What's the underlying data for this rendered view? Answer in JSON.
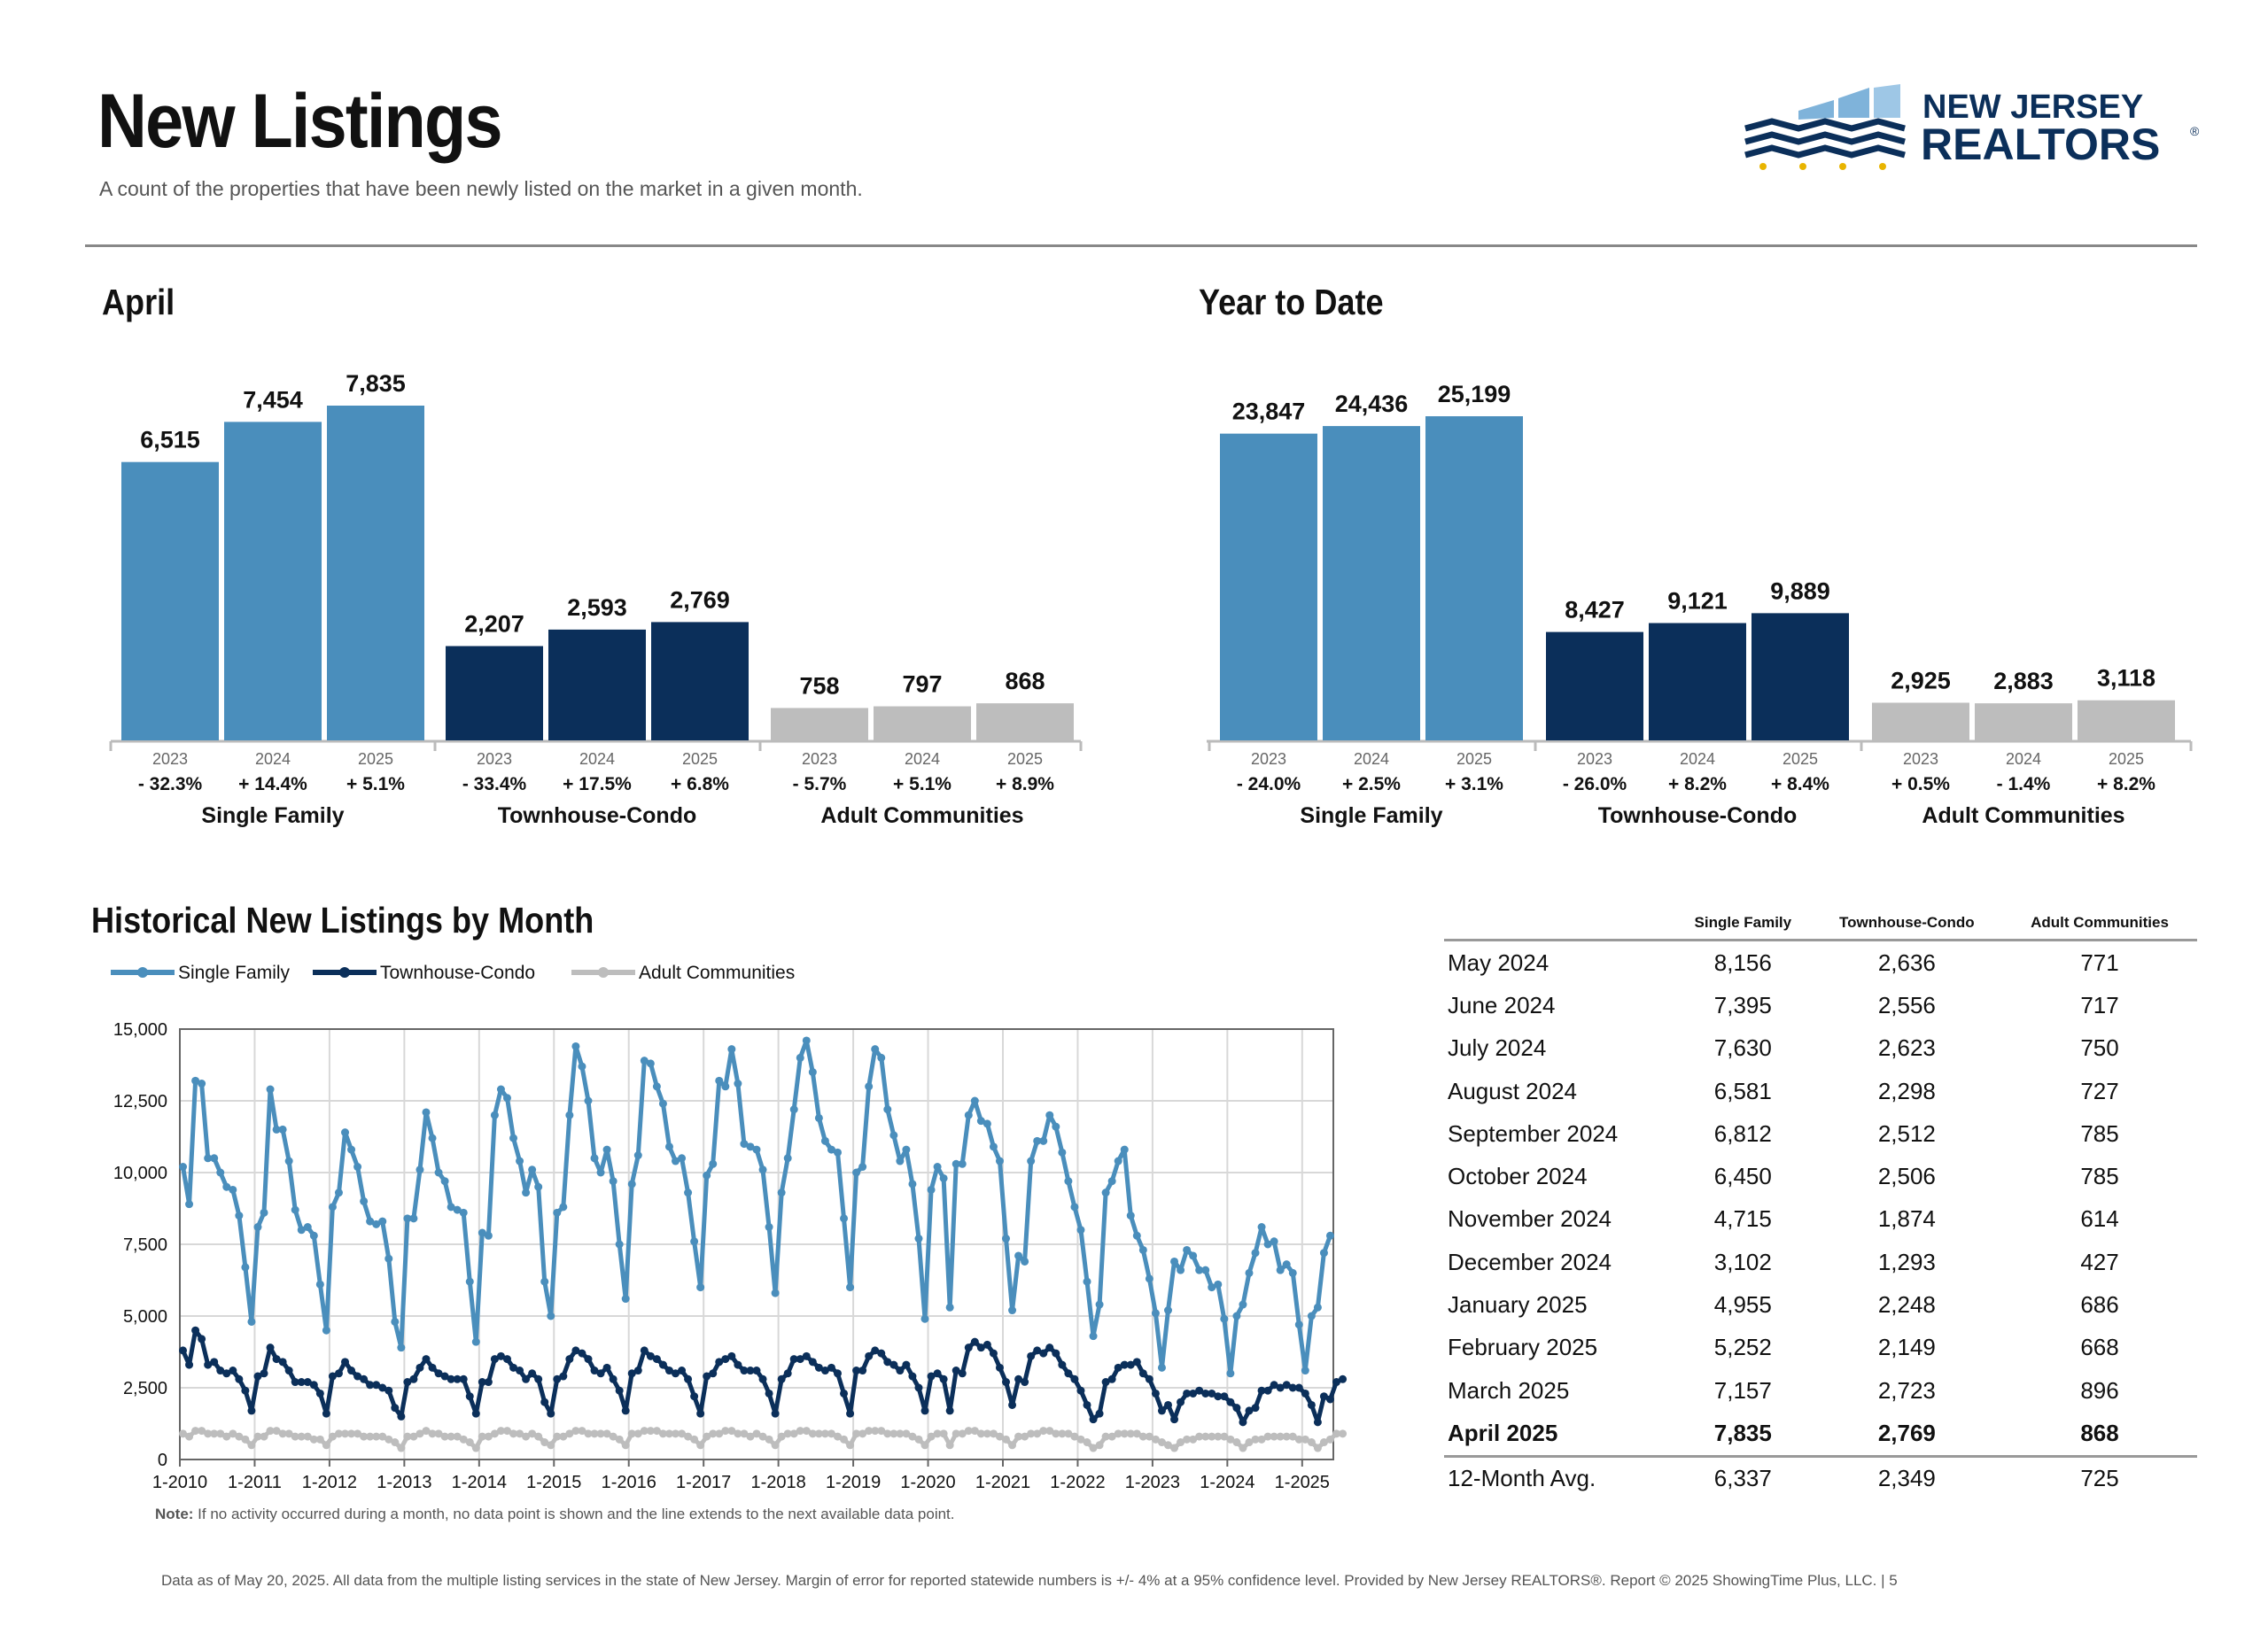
{
  "header": {
    "title": "New Listings",
    "subtitle": "A count of the properties that have been newly listed on the market in a given month.",
    "logo": {
      "line1": "NEW JERSEY",
      "line2": "REALTORS",
      "mark": "®"
    }
  },
  "sections": {
    "month": "April",
    "ytd": "Year to Date",
    "historical": "Historical New Listings by Month"
  },
  "colors": {
    "single_family": "#4a8ebc",
    "townhouse": "#0b2f5a",
    "adult": "#bdbdbd",
    "grid": "#d8d8d8"
  },
  "chart_data": [
    {
      "type": "bar",
      "title": "April",
      "groups": [
        {
          "name": "Single Family",
          "years": [
            "2023",
            "2024",
            "2025"
          ],
          "values": [
            6515,
            7454,
            7835
          ],
          "labels": [
            "6,515",
            "7,454",
            "7,835"
          ],
          "changes": [
            "- 32.3%",
            "+ 14.4%",
            "+ 5.1%"
          ]
        },
        {
          "name": "Townhouse-Condo",
          "years": [
            "2023",
            "2024",
            "2025"
          ],
          "values": [
            2207,
            2593,
            2769
          ],
          "labels": [
            "2,207",
            "2,593",
            "2,769"
          ],
          "changes": [
            "- 33.4%",
            "+ 17.5%",
            "+ 6.8%"
          ]
        },
        {
          "name": "Adult Communities",
          "years": [
            "2023",
            "2024",
            "2025"
          ],
          "values": [
            758,
            797,
            868
          ],
          "labels": [
            "758",
            "797",
            "868"
          ],
          "changes": [
            "- 5.7%",
            "+ 5.1%",
            "+ 8.9%"
          ]
        }
      ]
    },
    {
      "type": "bar",
      "title": "Year to Date",
      "groups": [
        {
          "name": "Single Family",
          "years": [
            "2023",
            "2024",
            "2025"
          ],
          "values": [
            23847,
            24436,
            25199
          ],
          "labels": [
            "23,847",
            "24,436",
            "25,199"
          ],
          "changes": [
            "- 24.0%",
            "+ 2.5%",
            "+ 3.1%"
          ]
        },
        {
          "name": "Townhouse-Condo",
          "years": [
            "2023",
            "2024",
            "2025"
          ],
          "values": [
            8427,
            9121,
            9889
          ],
          "labels": [
            "8,427",
            "9,121",
            "9,889"
          ],
          "changes": [
            "- 26.0%",
            "+ 8.2%",
            "+ 8.4%"
          ]
        },
        {
          "name": "Adult Communities",
          "years": [
            "2023",
            "2024",
            "2025"
          ],
          "values": [
            2925,
            2883,
            3118
          ],
          "labels": [
            "2,925",
            "2,883",
            "3,118"
          ],
          "changes": [
            "+ 0.5%",
            "- 1.4%",
            "+ 8.2%"
          ]
        }
      ]
    },
    {
      "type": "line",
      "title": "Historical New Listings by Month",
      "x_start": "2010-01",
      "x_ticks": [
        "1-2010",
        "1-2011",
        "1-2012",
        "1-2013",
        "1-2014",
        "1-2015",
        "1-2016",
        "1-2017",
        "1-2018",
        "1-2019",
        "1-2020",
        "1-2021",
        "1-2022",
        "1-2023",
        "1-2024",
        "1-2025"
      ],
      "y_ticks": [
        "0",
        "2,500",
        "5,000",
        "7,500",
        "10,000",
        "12,500",
        "15,000"
      ],
      "ylim": [
        0,
        15000
      ],
      "legend_position": "top-left",
      "series": [
        {
          "name": "Single Family",
          "values": [
            10200,
            8900,
            13200,
            13100,
            10500,
            10500,
            10000,
            9500,
            9400,
            8500,
            6700,
            4800,
            8100,
            8600,
            12900,
            11500,
            11500,
            10400,
            8700,
            8000,
            8100,
            7800,
            6100,
            4500,
            8800,
            9300,
            11400,
            10800,
            10200,
            9000,
            8300,
            8200,
            8300,
            7000,
            4800,
            3900,
            8400,
            8400,
            10100,
            12100,
            11200,
            10000,
            9700,
            8800,
            8700,
            8600,
            6200,
            4100,
            7900,
            7800,
            12000,
            12900,
            12600,
            11200,
            10400,
            9300,
            10100,
            9500,
            6200,
            5000,
            8600,
            8800,
            12000,
            14400,
            13700,
            12500,
            10500,
            10000,
            10800,
            9700,
            7500,
            5600,
            9600,
            10600,
            13900,
            13800,
            13000,
            12400,
            10900,
            10400,
            10500,
            9300,
            7600,
            6000,
            9900,
            10300,
            13200,
            13000,
            14300,
            13100,
            11000,
            10900,
            10800,
            10100,
            8100,
            5800,
            9300,
            10500,
            12200,
            14000,
            14600,
            13500,
            11900,
            11100,
            10800,
            10700,
            8400,
            6000,
            10000,
            10200,
            13000,
            14300,
            14000,
            12200,
            11300,
            10400,
            10800,
            9600,
            7700,
            4900,
            9400,
            10200,
            9800,
            5300,
            10300,
            10300,
            12000,
            12500,
            11800,
            11700,
            10900,
            10400,
            7700,
            5200,
            7100,
            6900,
            10400,
            11100,
            11100,
            12000,
            11600,
            10700,
            9700,
            8800,
            8000,
            6200,
            4300,
            5400,
            9300,
            9700,
            10400,
            10800,
            8500,
            7800,
            7300,
            6300,
            5100,
            3200,
            5200,
            6900,
            6600,
            7300,
            7100,
            6600,
            6600,
            6000,
            6100,
            4900,
            3000,
            5000,
            5400,
            6500,
            7200,
            8100,
            7500,
            7600,
            6600,
            6800,
            6500,
            4700,
            3100,
            5000,
            5300,
            7200,
            7800
          ]
        },
        {
          "name": "Townhouse-Condo",
          "values": [
            3800,
            3300,
            4500,
            4200,
            3300,
            3400,
            3100,
            3000,
            3100,
            2800,
            2400,
            1700,
            2900,
            3000,
            3900,
            3500,
            3400,
            3100,
            2700,
            2700,
            2700,
            2600,
            2300,
            1600,
            2900,
            3000,
            3400,
            3100,
            2900,
            2800,
            2600,
            2600,
            2500,
            2400,
            1800,
            1500,
            2700,
            2800,
            3200,
            3500,
            3200,
            3000,
            2900,
            2800,
            2800,
            2800,
            2200,
            1600,
            2700,
            2700,
            3500,
            3600,
            3500,
            3200,
            3100,
            2800,
            3000,
            2800,
            2000,
            1600,
            2800,
            2900,
            3500,
            3800,
            3700,
            3500,
            3100,
            3000,
            3200,
            2800,
            2400,
            1700,
            3000,
            3100,
            3800,
            3600,
            3500,
            3300,
            3100,
            3000,
            3100,
            2800,
            2200,
            1600,
            2900,
            3000,
            3400,
            3500,
            3600,
            3300,
            3100,
            3100,
            3100,
            2800,
            2300,
            1600,
            2800,
            3000,
            3500,
            3500,
            3600,
            3400,
            3200,
            3100,
            3200,
            3000,
            2300,
            1600,
            3100,
            3100,
            3600,
            3800,
            3700,
            3400,
            3300,
            3100,
            3300,
            2900,
            2500,
            1700,
            2900,
            3000,
            2800,
            1700,
            3100,
            3000,
            3900,
            4100,
            3900,
            4000,
            3700,
            3200,
            2700,
            1900,
            2800,
            2700,
            3600,
            3800,
            3700,
            3900,
            3700,
            3300,
            3000,
            2800,
            2400,
            1900,
            1400,
            1600,
            2700,
            2800,
            3200,
            3300,
            3300,
            3400,
            3000,
            2800,
            2300,
            1700,
            1900,
            1400,
            2000,
            2300,
            2300,
            2400,
            2300,
            2300,
            2200,
            2200,
            2000,
            1800,
            1300,
            1700,
            1800,
            2400,
            2400,
            2600,
            2500,
            2600,
            2500,
            2500,
            2300,
            1900,
            1300,
            2200,
            2100,
            2700,
            2800
          ]
        },
        {
          "name": "Adult Communities",
          "values": [
            900,
            800,
            1000,
            1000,
            900,
            900,
            900,
            800,
            900,
            800,
            700,
            500,
            800,
            800,
            1000,
            1000,
            900,
            900,
            800,
            800,
            800,
            700,
            700,
            500,
            800,
            900,
            900,
            900,
            900,
            800,
            800,
            800,
            800,
            700,
            600,
            400,
            800,
            800,
            900,
            1000,
            900,
            900,
            800,
            800,
            800,
            700,
            600,
            400,
            800,
            800,
            900,
            1000,
            1000,
            900,
            900,
            800,
            900,
            800,
            600,
            500,
            800,
            800,
            900,
            1000,
            1000,
            900,
            900,
            900,
            900,
            800,
            700,
            500,
            900,
            900,
            1000,
            1000,
            1000,
            900,
            900,
            900,
            900,
            800,
            700,
            500,
            800,
            900,
            900,
            1000,
            1000,
            900,
            900,
            800,
            900,
            800,
            700,
            500,
            800,
            900,
            900,
            1000,
            1000,
            900,
            900,
            900,
            900,
            800,
            700,
            500,
            900,
            900,
            1000,
            1000,
            1000,
            900,
            900,
            900,
            900,
            800,
            700,
            500,
            800,
            900,
            900,
            500,
            900,
            900,
            1000,
            1000,
            900,
            900,
            900,
            800,
            700,
            500,
            800,
            800,
            900,
            900,
            1000,
            1000,
            900,
            900,
            900,
            800,
            700,
            600,
            400,
            500,
            800,
            800,
            900,
            900,
            900,
            900,
            800,
            800,
            700,
            600,
            500,
            400,
            600,
            700,
            700,
            800,
            800,
            800,
            800,
            800,
            700,
            600,
            400,
            600,
            700,
            700,
            800,
            800,
            800,
            800,
            800,
            700,
            700,
            600,
            400,
            600,
            700,
            900,
            900
          ]
        }
      ]
    },
    {
      "type": "table",
      "columns": [
        "Single Family",
        "Townhouse-Condo",
        "Adult Communities"
      ],
      "rows": [
        {
          "month": "May 2024",
          "sf": "8,156",
          "tc": "2,636",
          "ac": "771"
        },
        {
          "month": "June 2024",
          "sf": "7,395",
          "tc": "2,556",
          "ac": "717"
        },
        {
          "month": "July 2024",
          "sf": "7,630",
          "tc": "2,623",
          "ac": "750"
        },
        {
          "month": "August 2024",
          "sf": "6,581",
          "tc": "2,298",
          "ac": "727"
        },
        {
          "month": "September 2024",
          "sf": "6,812",
          "tc": "2,512",
          "ac": "785"
        },
        {
          "month": "October 2024",
          "sf": "6,450",
          "tc": "2,506",
          "ac": "785"
        },
        {
          "month": "November 2024",
          "sf": "4,715",
          "tc": "1,874",
          "ac": "614"
        },
        {
          "month": "December 2024",
          "sf": "3,102",
          "tc": "1,293",
          "ac": "427"
        },
        {
          "month": "January 2025",
          "sf": "4,955",
          "tc": "2,248",
          "ac": "686"
        },
        {
          "month": "February 2025",
          "sf": "5,252",
          "tc": "2,149",
          "ac": "668"
        },
        {
          "month": "March 2025",
          "sf": "7,157",
          "tc": "2,723",
          "ac": "896"
        },
        {
          "month": "April 2025",
          "sf": "7,835",
          "tc": "2,769",
          "ac": "868"
        },
        {
          "month": "12-Month Avg.",
          "sf": "6,337",
          "tc": "2,349",
          "ac": "725"
        }
      ]
    }
  ],
  "note": {
    "label": "Note:",
    "text": " If no activity occurred during a month, no data point is shown and the line extends to the next available data point."
  },
  "footer": "Data as of May 20, 2025. All data from the multiple listing services in the state of New Jersey. Margin of error for reported statewide numbers is +/- 4% at a 95% confidence level. Provided by New Jersey REALTORS®. Report © 2025 ShowingTime Plus, LLC. |  5"
}
